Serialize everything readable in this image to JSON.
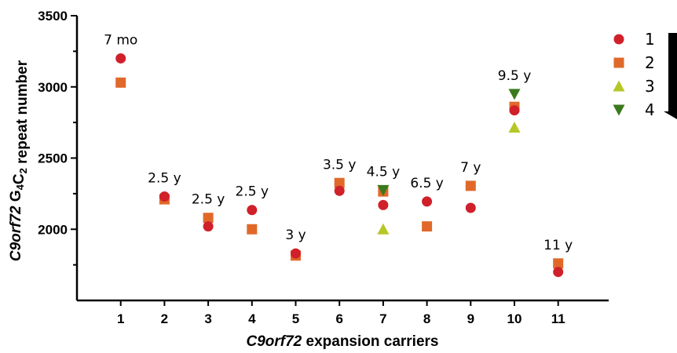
{
  "chart_data": {
    "type": "scatter",
    "xlabel_italic": "C9orf72",
    "xlabel_rest": " expansion carriers",
    "ylabel_parts": [
      "C9orf72",
      " G",
      "4",
      "C",
      "2",
      " repeat number"
    ],
    "x_ticks": [
      1,
      2,
      3,
      4,
      5,
      6,
      7,
      8,
      9,
      10,
      11
    ],
    "ylim": [
      1500,
      3500
    ],
    "xlim": [
      0,
      11.5
    ],
    "y_ticks": [
      2000,
      2500,
      3000,
      3500
    ],
    "grid": false,
    "legend_placement": "top-right",
    "series": [
      {
        "name": "1",
        "marker": "circle",
        "color": "#d0202a",
        "x": [
          1,
          2,
          3,
          4,
          5,
          6,
          7,
          8,
          9,
          10,
          11
        ],
        "y": [
          3200,
          2230,
          2020,
          2135,
          1830,
          2270,
          2170,
          2195,
          2150,
          2835,
          1700
        ]
      },
      {
        "name": "2",
        "marker": "square",
        "color": "#e0692a",
        "x": [
          1,
          2,
          3,
          4,
          5,
          6,
          7,
          8,
          9,
          10,
          11
        ],
        "y": [
          3030,
          2210,
          2080,
          2000,
          1815,
          2325,
          2265,
          2020,
          2305,
          2860,
          1760
        ]
      },
      {
        "name": "3",
        "marker": "triangle-up",
        "color": "#b5c726",
        "x": [
          7,
          10
        ],
        "y": [
          2000,
          2715
        ]
      },
      {
        "name": "4",
        "marker": "triangle-down",
        "color": "#3a7a1c",
        "x": [
          7,
          10
        ],
        "y": [
          2275,
          2950
        ]
      }
    ],
    "annotations": [
      {
        "x": 1,
        "y": 3200,
        "text": "7 mo"
      },
      {
        "x": 2,
        "y": 2230,
        "text": "2.5 y"
      },
      {
        "x": 3,
        "y": 2080,
        "text": "2.5 y"
      },
      {
        "x": 4,
        "y": 2135,
        "text": "2.5 y"
      },
      {
        "x": 5,
        "y": 1830,
        "text": "3 y"
      },
      {
        "x": 6,
        "y": 2325,
        "text": "3.5 y"
      },
      {
        "x": 7,
        "y": 2275,
        "text": "4.5 y"
      },
      {
        "x": 8,
        "y": 2195,
        "text": "6.5 y"
      },
      {
        "x": 9,
        "y": 2305,
        "text": "7 y"
      },
      {
        "x": 10,
        "y": 2950,
        "text": "9.5 y"
      },
      {
        "x": 11,
        "y": 1760,
        "text": "11 y"
      }
    ]
  }
}
